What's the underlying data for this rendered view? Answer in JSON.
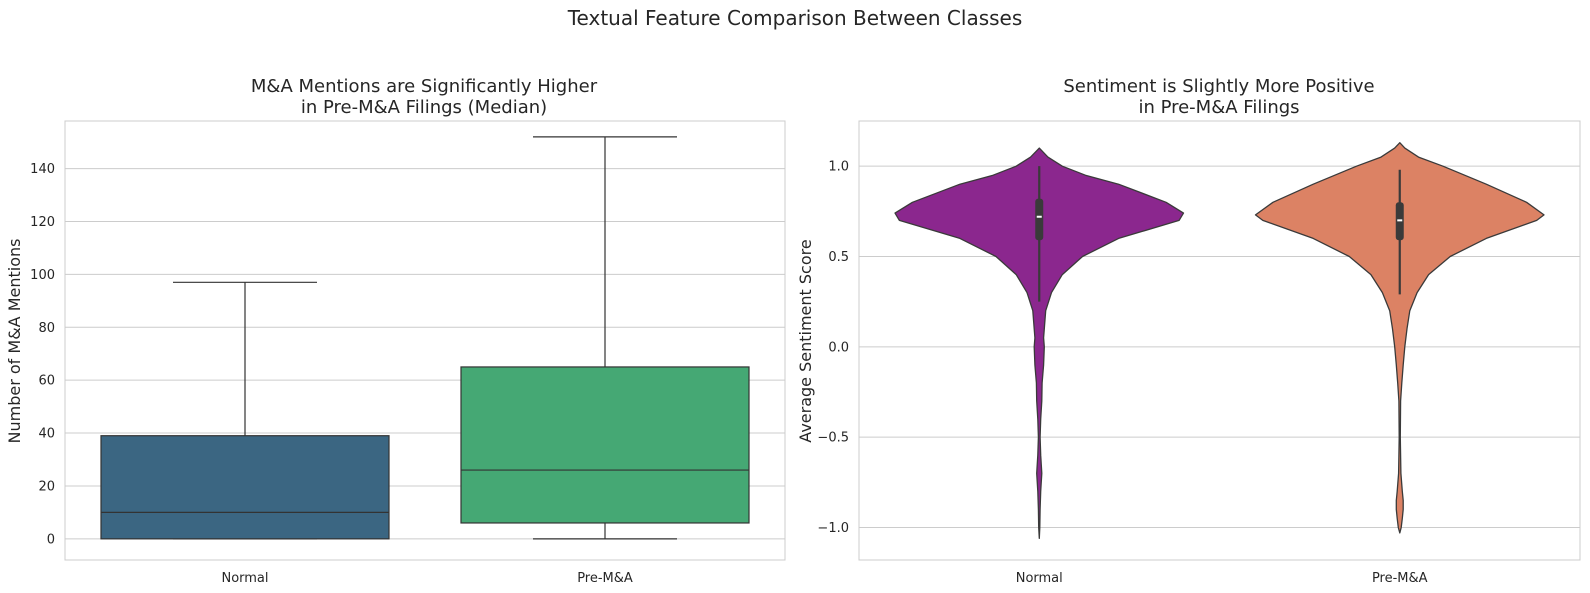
{
  "figure": {
    "suptitle": "Textual Feature Comparison Between Classes"
  },
  "chart_data": [
    {
      "type": "box",
      "title_line1": "M&A Mentions are Significantly Higher",
      "title_line2": "in Pre-M&A Filings (Median)",
      "xlabel": "",
      "ylabel": "Number of M&A Mentions",
      "categories": [
        "Normal",
        "Pre-M&A"
      ],
      "ylim": [
        -8,
        158
      ],
      "yticks": [
        0,
        20,
        40,
        60,
        80,
        100,
        120,
        140
      ],
      "grid": true,
      "colors": [
        "#3b6682",
        "#45a874"
      ],
      "boxes": [
        {
          "category": "Normal",
          "whisker_low": 0,
          "q1": 0,
          "median": 10,
          "q3": 39,
          "whisker_high": 97
        },
        {
          "category": "Pre-M&A",
          "whisker_low": 0,
          "q1": 6,
          "median": 26,
          "q3": 65,
          "whisker_high": 152
        }
      ]
    },
    {
      "type": "violin",
      "title_line1": "Sentiment is Slightly More Positive",
      "title_line2": "in Pre-M&A Filings",
      "xlabel": "",
      "ylabel": "Average Sentiment Score",
      "categories": [
        "Normal",
        "Pre-M&A"
      ],
      "ylim": [
        -1.18,
        1.25
      ],
      "yticks": [
        -1.0,
        -0.5,
        0.0,
        0.5,
        1.0
      ],
      "ytick_labels": [
        "−1.0",
        "−0.5",
        "0.0",
        "0.5",
        "1.0"
      ],
      "grid": true,
      "colors": [
        "#8b278e",
        "#dc8264"
      ],
      "violins": [
        {
          "category": "Normal",
          "median": 0.72,
          "q1": 0.59,
          "q3": 0.82,
          "whisker_low": 0.25,
          "whisker_high": 1.0,
          "density": [
            [
              -1.06,
              0.0
            ],
            [
              -1.0,
              0.004
            ],
            [
              -0.9,
              0.006
            ],
            [
              -0.8,
              0.01
            ],
            [
              -0.7,
              0.018
            ],
            [
              -0.6,
              0.01
            ],
            [
              -0.5,
              0.006
            ],
            [
              -0.4,
              0.01
            ],
            [
              -0.3,
              0.018
            ],
            [
              -0.2,
              0.02
            ],
            [
              -0.1,
              0.03
            ],
            [
              0.0,
              0.035
            ],
            [
              0.05,
              0.03
            ],
            [
              0.1,
              0.035
            ],
            [
              0.2,
              0.045
            ],
            [
              0.3,
              0.085
            ],
            [
              0.4,
              0.16
            ],
            [
              0.5,
              0.3
            ],
            [
              0.6,
              0.55
            ],
            [
              0.7,
              0.97
            ],
            [
              0.74,
              1.0
            ],
            [
              0.8,
              0.88
            ],
            [
              0.9,
              0.55
            ],
            [
              0.95,
              0.32
            ],
            [
              1.0,
              0.16
            ],
            [
              1.05,
              0.06
            ],
            [
              1.1,
              0.0
            ]
          ]
        },
        {
          "category": "Pre-M&A",
          "median": 0.7,
          "q1": 0.59,
          "q3": 0.8,
          "whisker_low": 0.29,
          "whisker_high": 0.98,
          "density": [
            [
              -1.03,
              0.0
            ],
            [
              -1.0,
              0.01
            ],
            [
              -0.95,
              0.018
            ],
            [
              -0.9,
              0.024
            ],
            [
              -0.85,
              0.024
            ],
            [
              -0.8,
              0.018
            ],
            [
              -0.7,
              0.008
            ],
            [
              -0.5,
              0.004
            ],
            [
              -0.3,
              0.006
            ],
            [
              -0.2,
              0.014
            ],
            [
              -0.1,
              0.024
            ],
            [
              0.0,
              0.035
            ],
            [
              0.1,
              0.05
            ],
            [
              0.2,
              0.07
            ],
            [
              0.3,
              0.12
            ],
            [
              0.4,
              0.2
            ],
            [
              0.5,
              0.35
            ],
            [
              0.6,
              0.6
            ],
            [
              0.7,
              0.95
            ],
            [
              0.73,
              1.0
            ],
            [
              0.8,
              0.88
            ],
            [
              0.9,
              0.6
            ],
            [
              1.0,
              0.3
            ],
            [
              1.05,
              0.13
            ],
            [
              1.1,
              0.035
            ],
            [
              1.13,
              0.0
            ]
          ]
        }
      ]
    }
  ]
}
